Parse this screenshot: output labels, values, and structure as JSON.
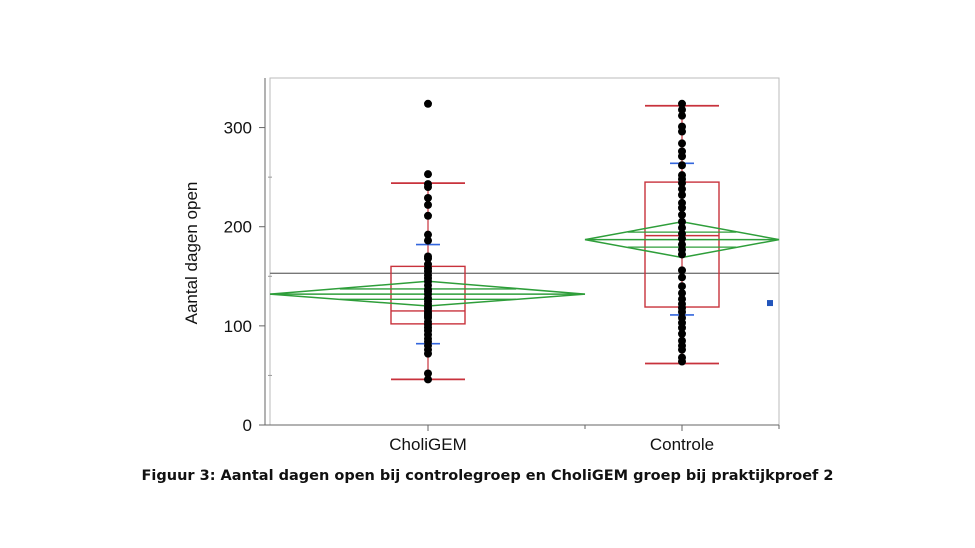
{
  "caption": "Figuur 3: Aantal dagen open bij controlegroep en CholiGEM groep bij praktijkproef 2",
  "colors": {
    "points": "#000000",
    "box": "#c8323c",
    "diamond": "#2e9e3a",
    "ci_ticks": "#3366dd",
    "grand_mean": "#777777",
    "frame": "#bbbbbb",
    "marker": "#2255bb"
  },
  "chart_data": {
    "type": "scatter",
    "title": "",
    "xlabel": "",
    "ylabel": "Aantal dagen open",
    "ylim": [
      0,
      350
    ],
    "yticks": [
      0,
      100,
      200,
      300
    ],
    "categories": [
      "CholiGEM",
      "Controle"
    ],
    "grand_mean": 153,
    "groups": [
      {
        "name": "CholiGEM",
        "mean": 132,
        "mean_ci": [
          120,
          145
        ],
        "box": {
          "min": 46,
          "q1": 102,
          "median": 115,
          "q3": 160,
          "max": 244
        },
        "ci_ticks": [
          82,
          182
        ],
        "points": [
          324,
          253,
          243,
          240,
          229,
          222,
          211,
          192,
          186,
          170,
          168,
          162,
          158,
          155,
          151,
          148,
          145,
          141,
          137,
          135,
          132,
          128,
          125,
          122,
          119,
          117,
          114,
          112,
          110,
          108,
          104,
          101,
          98,
          95,
          91,
          87,
          84,
          80,
          76,
          72,
          52,
          46
        ]
      },
      {
        "name": "Controle",
        "mean": 187,
        "mean_ci": [
          169,
          205
        ],
        "box": {
          "min": 62,
          "q1": 119,
          "median": 191,
          "q3": 245,
          "max": 322
        },
        "ci_ticks": [
          111,
          264
        ],
        "points": [
          324,
          318,
          312,
          301,
          296,
          284,
          276,
          271,
          262,
          252,
          248,
          244,
          238,
          232,
          224,
          219,
          212,
          205,
          199,
          193,
          188,
          182,
          177,
          172,
          156,
          149,
          140,
          133,
          127,
          122,
          118,
          114,
          108,
          103,
          98,
          92,
          85,
          80,
          76,
          68,
          64
        ]
      }
    ],
    "extra_marker": {
      "y": 123
    }
  }
}
